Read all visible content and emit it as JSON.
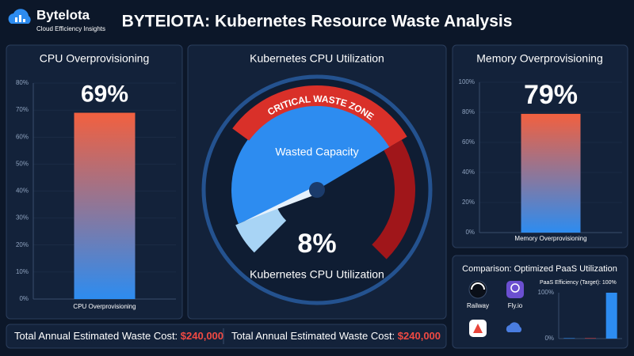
{
  "header": {
    "brand": "Bytelota",
    "tagline": "Cloud Efficiency Insights",
    "title": "BYTEIOTA: Kubernetes Resource Waste Analysis"
  },
  "chart_data": [
    {
      "type": "bar",
      "title": "CPU Overprovisioning",
      "categories": [
        "CPU Overprovisioning"
      ],
      "values": [
        69
      ],
      "value_labels": [
        "69%"
      ],
      "gradient": [
        "#f2603f",
        "#2d8cf0"
      ],
      "ylim": [
        0,
        80
      ],
      "yticks": [
        {
          "value": 0,
          "label": "0%"
        },
        {
          "value": 10,
          "label": "10%"
        },
        {
          "value": 20,
          "label": "20%"
        },
        {
          "value": 30,
          "label": "30%"
        },
        {
          "value": 40,
          "label": "40%"
        },
        {
          "value": 50,
          "label": "50%"
        },
        {
          "value": 60,
          "label": "60%"
        },
        {
          "value": 70,
          "label": "70%"
        },
        {
          "value": 80,
          "label": "80%"
        }
      ],
      "grid": true
    },
    {
      "type": "gauge",
      "title": "Kubernetes CPU Utilization",
      "value": 8,
      "value_label": "8%",
      "label": "Kubernetes CPU Utilization",
      "range": [
        0,
        100
      ],
      "annotations": [
        "Wasted Capacity",
        "CRITICAL WASTE ZONE"
      ]
    },
    {
      "type": "bar",
      "title": "Memory Overprovisioning",
      "categories": [
        "Memory Overprovisioning"
      ],
      "values": [
        79
      ],
      "value_labels": [
        "79%"
      ],
      "gradient": [
        "#f2603f",
        "#2d8cf0"
      ],
      "ylim": [
        0,
        100
      ],
      "yticks": [
        {
          "value": 0,
          "label": "0%"
        },
        {
          "value": 20,
          "label": "20%"
        },
        {
          "value": 40,
          "label": "40%"
        },
        {
          "value": 60,
          "label": "60%"
        },
        {
          "value": 80,
          "label": "80%"
        },
        {
          "value": 100,
          "label": "100%"
        }
      ],
      "grid": true
    },
    {
      "type": "bar",
      "title": "Comparison: Optimized PaaS Utilization",
      "subtitle": "PaaS Efficiency (Target): 100%",
      "providers": [
        "Railway",
        "Fly.io"
      ],
      "categories": [
        null,
        null,
        null
      ],
      "values": [
        1,
        1,
        100
      ],
      "colors": [
        "#2d8cf0",
        "#e04040",
        "#2d8cf0"
      ],
      "ylim": [
        0,
        100
      ],
      "yticks": [
        {
          "value": 0,
          "label": "0%"
        },
        {
          "value": 100,
          "label": "100%"
        }
      ],
      "grid": false
    }
  ],
  "footer": [
    {
      "label": "Total Annual Estimated Waste Cost:",
      "value": "$240,000"
    },
    {
      "label": "Total Annual Estimated Waste Cost:",
      "value": "$240,000"
    }
  ]
}
